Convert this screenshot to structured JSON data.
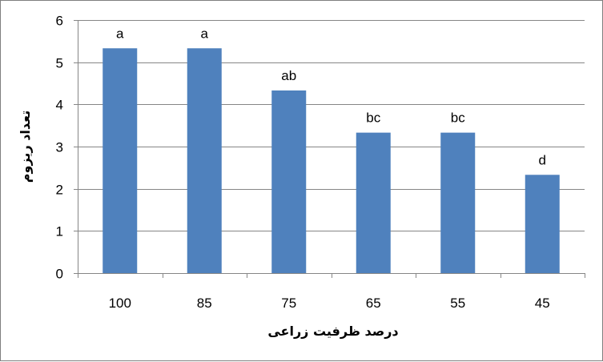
{
  "chart_data": {
    "type": "bar",
    "categories": [
      "100",
      "85",
      "75",
      "65",
      "55",
      "45"
    ],
    "values": [
      5.33,
      5.33,
      4.33,
      3.33,
      3.33,
      2.33
    ],
    "data_labels": [
      "a",
      "a",
      "ab",
      "bc",
      "bc",
      "d"
    ],
    "xlabel": "درصد ظرفیت زراعی",
    "ylabel": "تعداد ریزوم",
    "ylim": [
      0,
      6
    ],
    "yticks": [
      0,
      1,
      2,
      3,
      4,
      5,
      6
    ],
    "grid": true,
    "bar_color": "#4f81bd",
    "grid_color": "#868686"
  }
}
